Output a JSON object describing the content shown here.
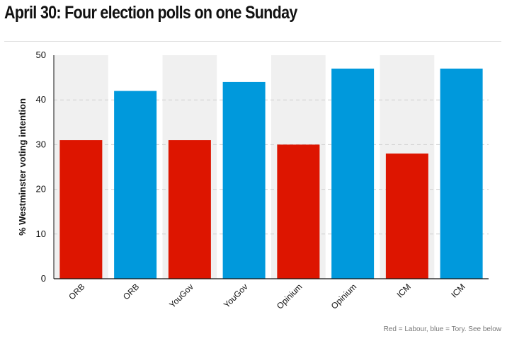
{
  "title": "April 30: Four election polls on one Sunday",
  "footnote": "Red = Labour, blue = Tory. See below",
  "colors": {
    "labour": "#dd1500",
    "tory": "#0099dc",
    "band": "#f0f0f0"
  },
  "chart_data": {
    "type": "bar",
    "title": "April 30: Four election polls on one Sunday",
    "xlabel": "",
    "ylabel": "% Westminster voting intention",
    "ylim": [
      0,
      50
    ],
    "yticks": [
      0,
      10,
      20,
      30,
      40,
      50
    ],
    "grid": true,
    "categories": [
      "ORB",
      "ORB",
      "YouGov",
      "YouGov",
      "Opinium",
      "Opinium",
      "ICM",
      "ICM"
    ],
    "values": [
      31,
      42,
      31,
      44,
      30,
      47,
      28,
      47
    ],
    "parties": [
      "Labour",
      "Tory",
      "Labour",
      "Tory",
      "Labour",
      "Tory",
      "Labour",
      "Tory"
    ]
  }
}
